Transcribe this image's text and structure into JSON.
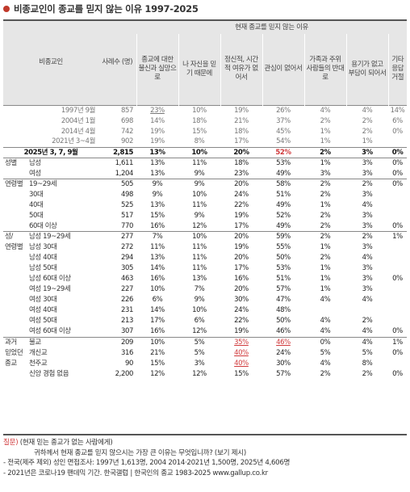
{
  "title": "비종교인이 종교를 믿지 않는 이유 1997-2025",
  "colors": {
    "accent": "#c0392b",
    "highlight": "#d0393b",
    "header_bg": "#e6e6e6"
  },
  "header": {
    "group_label": "비종교인",
    "n_label": "사례수 (명)",
    "span_label": "현재 종교를 믿지 않는 이유",
    "reasons": [
      "종교에 대한 불신과 실망으로",
      "나 자신을 믿기 때문에",
      "정신적, 시간적 여유가 없어서",
      "관심이 없어서",
      "가족과 주위 사람들의 반대로",
      "용기가 없고 부담이 되어서",
      "기타 응답 거절"
    ]
  },
  "history": [
    {
      "label": "1997년 9월",
      "n": "857",
      "v": [
        "23%",
        "10%",
        "19%",
        "26%",
        "4%",
        "4%",
        "14%"
      ]
    },
    {
      "label": "2004년 1월",
      "n": "698",
      "v": [
        "14%",
        "18%",
        "21%",
        "37%",
        "2%",
        "2%",
        "6%"
      ]
    },
    {
      "label": "2014년 4월",
      "n": "742",
      "v": [
        "19%",
        "15%",
        "18%",
        "45%",
        "1%",
        "2%",
        "0%"
      ]
    },
    {
      "label": "2021년 3~4월",
      "n": "902",
      "v": [
        "19%",
        "8%",
        "17%",
        "54%",
        "1%",
        "1%",
        ""
      ]
    }
  ],
  "current": {
    "label": "2025년 3, 7, 9월",
    "n": "2,815",
    "v": [
      "13%",
      "10%",
      "20%",
      "52%",
      "2%",
      "3%",
      "0%"
    ]
  },
  "rows": [
    {
      "g": "성별",
      "s": "남성",
      "n": "1,611",
      "v": [
        "13%",
        "11%",
        "18%",
        "53%",
        "1%",
        "3%",
        "0%"
      ]
    },
    {
      "g": "",
      "s": "여성",
      "n": "1,204",
      "v": [
        "13%",
        "9%",
        "23%",
        "49%",
        "3%",
        "3%",
        "0%"
      ]
    },
    {
      "g": "연령별",
      "s": "19~29세",
      "n": "505",
      "v": [
        "9%",
        "9%",
        "20%",
        "58%",
        "2%",
        "2%",
        "0%"
      ]
    },
    {
      "g": "",
      "s": "30대",
      "n": "498",
      "v": [
        "9%",
        "10%",
        "24%",
        "51%",
        "2%",
        "3%",
        ""
      ]
    },
    {
      "g": "",
      "s": "40대",
      "n": "525",
      "v": [
        "13%",
        "11%",
        "22%",
        "49%",
        "1%",
        "4%",
        ""
      ]
    },
    {
      "g": "",
      "s": "50대",
      "n": "517",
      "v": [
        "15%",
        "9%",
        "19%",
        "52%",
        "2%",
        "3%",
        ""
      ]
    },
    {
      "g": "",
      "s": "60대 이상",
      "n": "770",
      "v": [
        "16%",
        "12%",
        "17%",
        "49%",
        "2%",
        "3%",
        "0%"
      ]
    },
    {
      "g": "성/",
      "s": "남성 19~29세",
      "n": "277",
      "v": [
        "7%",
        "10%",
        "20%",
        "59%",
        "2%",
        "2%",
        "1%"
      ]
    },
    {
      "g": "연령별",
      "s": "남성 30대",
      "n": "272",
      "v": [
        "11%",
        "11%",
        "19%",
        "55%",
        "1%",
        "3%",
        ""
      ]
    },
    {
      "g": "",
      "s": "남성 40대",
      "n": "294",
      "v": [
        "13%",
        "11%",
        "20%",
        "50%",
        "2%",
        "4%",
        ""
      ]
    },
    {
      "g": "",
      "s": "남성 50대",
      "n": "305",
      "v": [
        "14%",
        "11%",
        "17%",
        "53%",
        "1%",
        "3%",
        ""
      ]
    },
    {
      "g": "",
      "s": "남성 60대 이상",
      "n": "463",
      "v": [
        "16%",
        "13%",
        "16%",
        "51%",
        "1%",
        "3%",
        "0%"
      ]
    },
    {
      "g": "",
      "s": "여성 19~29세",
      "n": "227",
      "v": [
        "10%",
        "7%",
        "20%",
        "57%",
        "1%",
        "3%",
        ""
      ]
    },
    {
      "g": "",
      "s": "여성 30대",
      "n": "226",
      "v": [
        "6%",
        "9%",
        "30%",
        "47%",
        "4%",
        "4%",
        ""
      ]
    },
    {
      "g": "",
      "s": "여성 40대",
      "n": "231",
      "v": [
        "14%",
        "10%",
        "24%",
        "48%",
        "",
        "",
        ""
      ]
    },
    {
      "g": "",
      "s": "여성 50대",
      "n": "213",
      "v": [
        "17%",
        "6%",
        "22%",
        "50%",
        "4%",
        "2%",
        ""
      ]
    },
    {
      "g": "",
      "s": "여성 60대 이상",
      "n": "307",
      "v": [
        "16%",
        "12%",
        "19%",
        "46%",
        "4%",
        "4%",
        "0%"
      ]
    },
    {
      "g": "과거",
      "s": "불교",
      "n": "209",
      "v": [
        "10%",
        "5%",
        "35%",
        "46%",
        "0%",
        "4%",
        "1%"
      ]
    },
    {
      "g": "믿었던",
      "s": "개신교",
      "n": "316",
      "v": [
        "21%",
        "5%",
        "40%",
        "24%",
        "5%",
        "5%",
        "0%"
      ]
    },
    {
      "g": "종교",
      "s": "천주교",
      "n": "90",
      "v": [
        "15%",
        "3%",
        "40%",
        "30%",
        "4%",
        "8%",
        ""
      ]
    },
    {
      "g": "",
      "s": "신앙 경험 없음",
      "n": "2,200",
      "v": [
        "12%",
        "12%",
        "15%",
        "57%",
        "2%",
        "2%",
        "0%"
      ]
    }
  ],
  "footer": {
    "q_label": "질문)",
    "q_line1": "(현재 믿는 종교가 없는 사람에게)",
    "q_line2": "귀하께서 현재 종교를 믿지 않으시는 가장 큰 이유는 무엇입니까? (보기 제시)",
    "note1": "- 전국(제주 제외) 성인 면접조사: 1997년 1,613명, 2004 2014·2021년 1,500명, 2025년 4,606명",
    "note2": "- 2021년은 코로나19 팬데믹 기간. 한국갤럽 | 한국인의 종교 1983-2025 www.gallup.co.kr"
  }
}
